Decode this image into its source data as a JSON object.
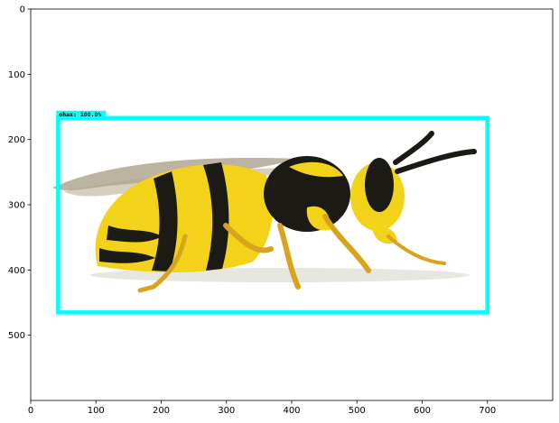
{
  "plot": {
    "x_ticks": [
      "0",
      "100",
      "200",
      "300",
      "400",
      "500",
      "600",
      "700"
    ],
    "y_ticks": [
      "0",
      "100",
      "200",
      "300",
      "400",
      "500"
    ],
    "xlim": [
      0,
      800
    ],
    "ylim": [
      600,
      0
    ],
    "image_subject": "yellow-jacket-wasp",
    "colors": {
      "box": "#00ffff",
      "wasp_yellow": "#f2d31a",
      "wasp_black": "#1c1a14",
      "legs": "#d9a31c"
    }
  },
  "detection": {
    "label": "ohax: 100.0%",
    "box": {
      "x0": 42,
      "y0": 167,
      "x1": 700,
      "y1": 465
    }
  }
}
